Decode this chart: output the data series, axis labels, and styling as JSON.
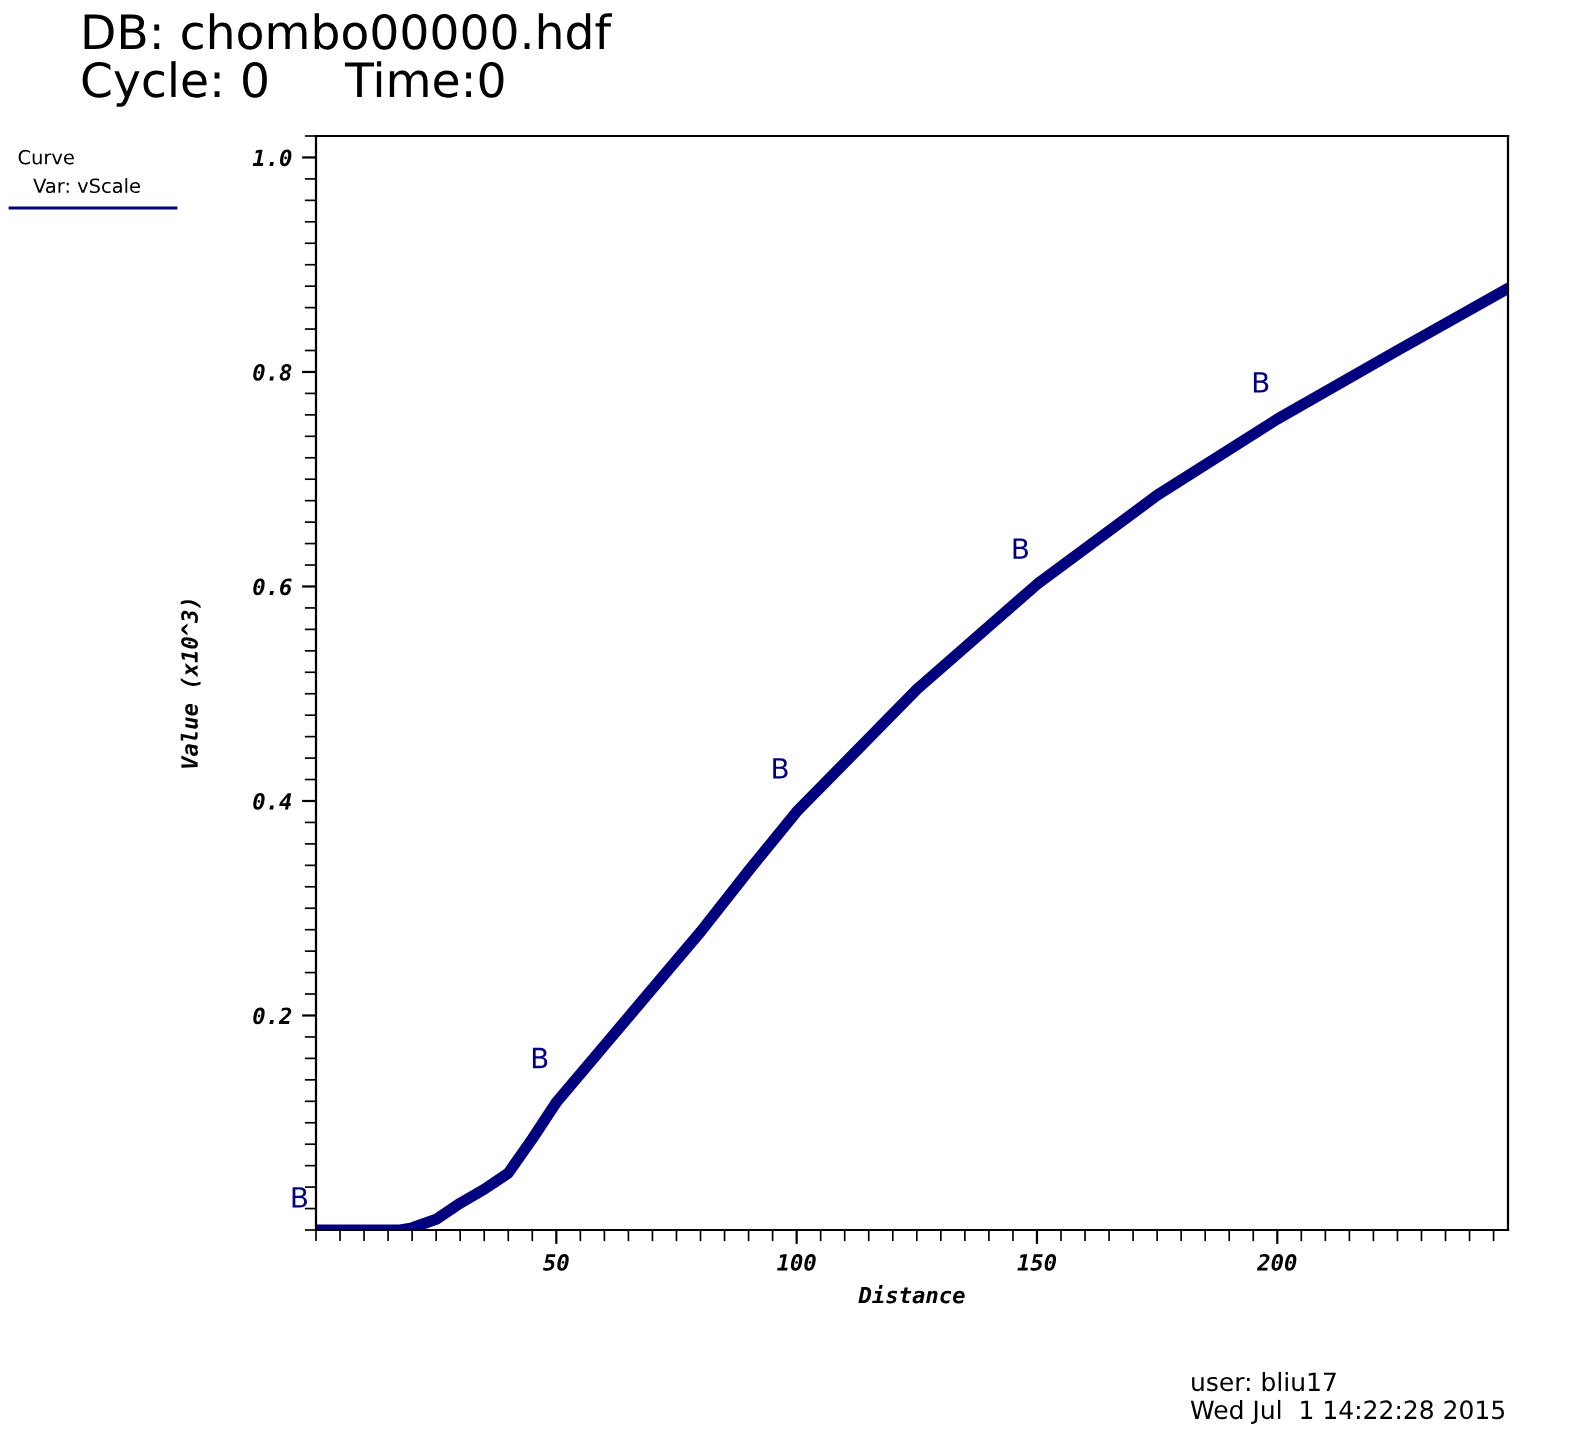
{
  "chart_data": {
    "type": "line",
    "title": "DB: chombo00000.hdf",
    "subtitle": "Cycle: 0     Time:0",
    "xlabel": "Distance",
    "ylabel": "Value (x10^3)",
    "legend_title": "Curve",
    "x": [
      0,
      10,
      17.5,
      20,
      25,
      30,
      35,
      40,
      45,
      50,
      60,
      70,
      80,
      90,
      100,
      125,
      150,
      175,
      200,
      225,
      248
    ],
    "series": [
      {
        "name": "Var: vScale",
        "color": "#00007f",
        "values": [
          0,
          0,
          0,
          0.002,
          0.01,
          0.025,
          0.038,
          0.053,
          0.085,
          0.119,
          0.172,
          0.225,
          0.278,
          0.335,
          0.39,
          0.504,
          0.602,
          0.685,
          0.756,
          0.82,
          0.878
        ]
      }
    ],
    "xlim": [
      0,
      248
    ],
    "ylim": [
      0,
      1.02
    ],
    "xticks": [
      50,
      100,
      150,
      200
    ],
    "yticks": [
      0.2,
      0.4,
      0.6,
      0.8,
      {
        "value": 1.0,
        "label": "1.0"
      }
    ],
    "annotations": [
      {
        "text": "B",
        "x": 2,
        "y": 0
      },
      {
        "text": "B",
        "x": 52,
        "y": 0.13
      },
      {
        "text": "B",
        "x": 102,
        "y": 0.4
      },
      {
        "text": "B",
        "x": 152,
        "y": 0.605
      },
      {
        "text": "B",
        "x": 202,
        "y": 0.76
      },
      "user: bliu17",
      "Wed Jul  1 14:22:28 2015"
    ],
    "legend": "top left",
    "grid": false,
    "marker": "none",
    "line_style": "solid"
  }
}
